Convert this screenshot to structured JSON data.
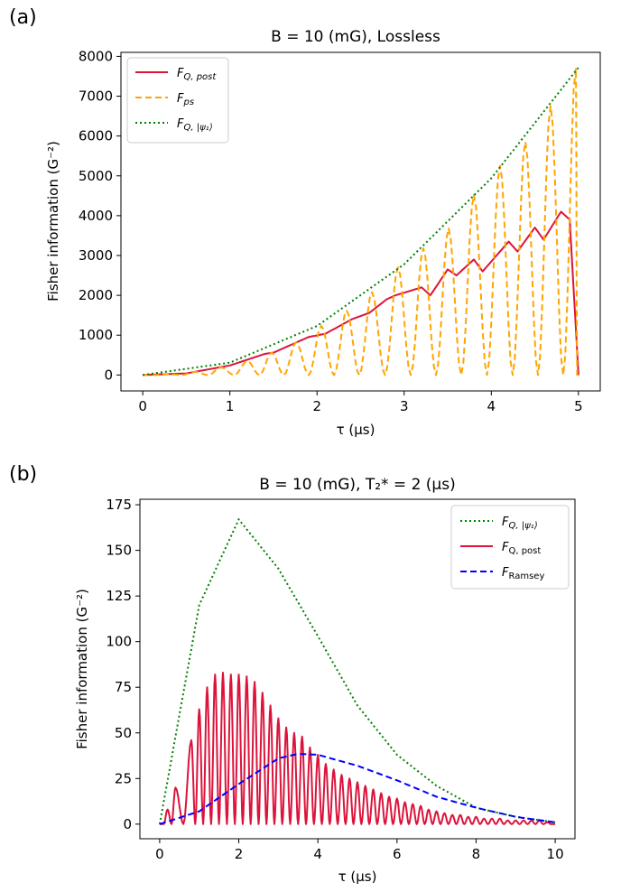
{
  "chart_data": [
    {
      "type": "line",
      "panel_label": "(a)",
      "title": "B = 10 (mG), Lossless",
      "xlabel": "τ (μs)",
      "ylabel": "Fisher information (G⁻²)",
      "xlim": [
        -0.25,
        5.25
      ],
      "ylim": [
        -400,
        8100
      ],
      "xticks": [
        0,
        1,
        2,
        3,
        4,
        5
      ],
      "yticks": [
        0,
        1000,
        2000,
        3000,
        4000,
        5000,
        6000,
        7000,
        8000
      ],
      "grid": false,
      "legend_position": "top-left",
      "series": [
        {
          "name": "F_{Q,post}",
          "style": "solid",
          "color": "#dc143c",
          "x": [
            0,
            0.5,
            0.9,
            1.0,
            1.4,
            1.5,
            1.9,
            2.1,
            2.4,
            2.6,
            2.8,
            2.9,
            3.2,
            3.3,
            3.5,
            3.6,
            3.8,
            3.9,
            4.2,
            4.3,
            4.5,
            4.6,
            4.8,
            4.9,
            5.0
          ],
          "y": [
            0,
            40,
            200,
            240,
            530,
            560,
            950,
            1040,
            1400,
            1560,
            1900,
            2000,
            2200,
            2000,
            2650,
            2500,
            2900,
            2600,
            3350,
            3100,
            3700,
            3400,
            4100,
            3900,
            0
          ]
        },
        {
          "name": "F_{ps}",
          "style": "dashed",
          "color": "#ffa500",
          "peaks_x": [
            0.3,
            0.6,
            0.9,
            1.2,
            1.48,
            1.76,
            2.05,
            2.34,
            2.63,
            2.93,
            3.22,
            3.51,
            3.8,
            4.1,
            4.39,
            4.68,
            4.97
          ],
          "peaks_y": [
            20,
            80,
            190,
            350,
            560,
            820,
            1230,
            1610,
            2080,
            2700,
            3180,
            3680,
            4520,
            5250,
            5850,
            6750,
            7700
          ]
        },
        {
          "name": "F_{Q,|ψ1⟩}",
          "style": "dotted",
          "color": "#008000",
          "x": [
            0,
            1,
            2,
            3,
            4,
            5
          ],
          "y": [
            0,
            310,
            1230,
            2780,
            4940,
            7720
          ]
        }
      ]
    },
    {
      "type": "line",
      "panel_label": "(b)",
      "title": "B = 10 (mG), T₂* = 2 (μs)",
      "xlabel": "τ (μs)",
      "ylabel": "Fisher information (G⁻²)",
      "xlim": [
        -0.5,
        10.5
      ],
      "ylim": [
        -8,
        178
      ],
      "xticks": [
        0,
        2,
        4,
        6,
        8,
        10
      ],
      "yticks": [
        0,
        25,
        50,
        75,
        100,
        125,
        150,
        175
      ],
      "grid": false,
      "legend_position": "top-right",
      "series": [
        {
          "name": "F_{Q,|ψ1⟩}",
          "style": "dotted",
          "color": "#008000",
          "x": [
            0,
            1,
            2,
            3,
            4,
            5,
            6,
            7,
            8,
            9,
            10
          ],
          "y": [
            0,
            120,
            167,
            140,
            103,
            65,
            38,
            21,
            9,
            4,
            1
          ]
        },
        {
          "name": "F_{Q,post}",
          "style": "solid",
          "color": "#dc143c",
          "peaks_x": [
            0.2,
            0.4,
            0.8,
            1.0,
            1.2,
            1.4,
            1.6,
            1.8,
            2.0,
            2.2,
            2.4,
            2.6,
            2.8,
            3.0,
            3.2,
            3.4,
            3.6,
            3.8,
            4.0,
            4.2,
            4.4,
            4.6,
            4.8,
            5.0,
            5.2,
            5.4,
            5.6,
            5.8,
            6.0,
            6.2,
            6.4,
            6.6,
            6.8,
            7.0,
            7.2,
            7.4,
            7.6,
            7.8,
            8.0,
            8.2,
            8.4,
            8.6,
            8.8,
            9.0,
            9.2,
            9.4,
            9.6,
            9.8
          ],
          "peaks_y": [
            8,
            20,
            46,
            63,
            75,
            82,
            83,
            82,
            82,
            81,
            78,
            72,
            65,
            58,
            53,
            50,
            48,
            42,
            38,
            33,
            30,
            27,
            25,
            23,
            21,
            19,
            17,
            15,
            14,
            12,
            11,
            10,
            8,
            7,
            6,
            5,
            5,
            4,
            4,
            3,
            3,
            3,
            2,
            2,
            2,
            2,
            2,
            1
          ]
        },
        {
          "name": "F_{Ramsey}",
          "style": "dashed",
          "color": "#0000ff",
          "x": [
            0,
            1,
            2,
            3,
            3.5,
            4,
            5,
            6,
            7,
            8,
            9,
            10
          ],
          "y": [
            0,
            7,
            22,
            36,
            38.5,
            38,
            32,
            24,
            15,
            9,
            4,
            1
          ]
        }
      ]
    }
  ]
}
